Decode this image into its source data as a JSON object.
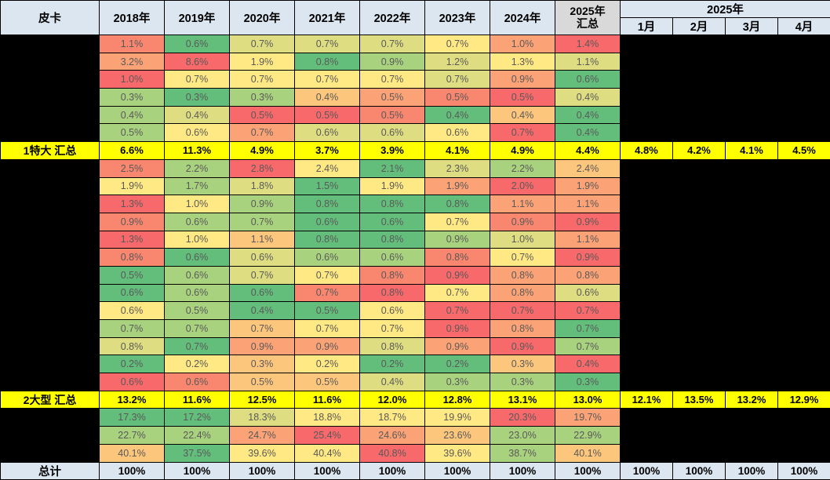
{
  "header": {
    "corner": "皮卡",
    "years": [
      "2018年",
      "2019年",
      "2020年",
      "2021年",
      "2022年",
      "2023年",
      "2024年"
    ],
    "summary_col_line1": "2025年",
    "summary_col_line2": "汇总",
    "months_group_label": "2025年",
    "months": [
      "1月",
      "2月",
      "3月",
      "4月"
    ]
  },
  "colors": {
    "r": "#F8696B",
    "do": "#F9876F",
    "o": "#FBA376",
    "lo": "#FDC67D",
    "y": "#FFE984",
    "yg": "#DFDD82",
    "lg": "#A9D27F",
    "g": "#63BE7B",
    "header_bg": "#DCE6F1",
    "summary_col_bg": "#D9D9D9",
    "highlight_yellow": "#FFFF00",
    "redacted_black": "#000000"
  },
  "rows": [
    {
      "kind": "detail",
      "cells": [
        [
          "1.1%",
          "do"
        ],
        [
          "0.6%",
          "g"
        ],
        [
          "0.7%",
          "yg"
        ],
        [
          "0.7%",
          "yg"
        ],
        [
          "0.7%",
          "yg"
        ],
        [
          "0.7%",
          "y"
        ],
        [
          "1.0%",
          "o"
        ],
        [
          "1.4%",
          "r"
        ]
      ]
    },
    {
      "kind": "detail",
      "cells": [
        [
          "3.2%",
          "o"
        ],
        [
          "8.6%",
          "r"
        ],
        [
          "1.9%",
          "y"
        ],
        [
          "0.8%",
          "g"
        ],
        [
          "0.9%",
          "lg"
        ],
        [
          "1.2%",
          "yg"
        ],
        [
          "1.3%",
          "y"
        ],
        [
          "1.1%",
          "yg"
        ]
      ]
    },
    {
      "kind": "detail",
      "cells": [
        [
          "1.0%",
          "r"
        ],
        [
          "0.7%",
          "y"
        ],
        [
          "0.7%",
          "y"
        ],
        [
          "0.7%",
          "y"
        ],
        [
          "0.7%",
          "y"
        ],
        [
          "0.7%",
          "yg"
        ],
        [
          "0.9%",
          "o"
        ],
        [
          "0.6%",
          "g"
        ]
      ]
    },
    {
      "kind": "detail",
      "cells": [
        [
          "0.3%",
          "lg"
        ],
        [
          "0.3%",
          "g"
        ],
        [
          "0.3%",
          "lg"
        ],
        [
          "0.4%",
          "lo"
        ],
        [
          "0.5%",
          "o"
        ],
        [
          "0.5%",
          "do"
        ],
        [
          "0.5%",
          "r"
        ],
        [
          "0.4%",
          "yg"
        ]
      ]
    },
    {
      "kind": "detail",
      "cells": [
        [
          "0.4%",
          "lg"
        ],
        [
          "0.4%",
          "yg"
        ],
        [
          "0.5%",
          "r"
        ],
        [
          "0.5%",
          "r"
        ],
        [
          "0.5%",
          "do"
        ],
        [
          "0.4%",
          "g"
        ],
        [
          "0.4%",
          "lo"
        ],
        [
          "0.4%",
          "g"
        ]
      ]
    },
    {
      "kind": "detail",
      "cells": [
        [
          "0.5%",
          "lg"
        ],
        [
          "0.6%",
          "y"
        ],
        [
          "0.7%",
          "o"
        ],
        [
          "0.6%",
          "yg"
        ],
        [
          "0.6%",
          "yg"
        ],
        [
          "0.6%",
          "y"
        ],
        [
          "0.7%",
          "r"
        ],
        [
          "0.4%",
          "g"
        ]
      ]
    },
    {
      "kind": "summary",
      "label": "1特大 汇总",
      "values": [
        "6.6%",
        "11.3%",
        "4.9%",
        "3.7%",
        "3.9%",
        "4.1%",
        "4.9%",
        "4.4%"
      ],
      "months": [
        "4.8%",
        "4.2%",
        "4.1%",
        "4.5%"
      ]
    },
    {
      "kind": "detail",
      "cells": [
        [
          "2.5%",
          "do"
        ],
        [
          "2.2%",
          "lg"
        ],
        [
          "2.8%",
          "r"
        ],
        [
          "2.4%",
          "y"
        ],
        [
          "2.1%",
          "g"
        ],
        [
          "2.3%",
          "yg"
        ],
        [
          "2.2%",
          "lg"
        ],
        [
          "2.4%",
          "lo"
        ]
      ]
    },
    {
      "kind": "detail",
      "cells": [
        [
          "1.9%",
          "y"
        ],
        [
          "1.7%",
          "lg"
        ],
        [
          "1.8%",
          "yg"
        ],
        [
          "1.5%",
          "g"
        ],
        [
          "1.9%",
          "y"
        ],
        [
          "1.9%",
          "o"
        ],
        [
          "2.0%",
          "r"
        ],
        [
          "1.9%",
          "o"
        ]
      ]
    },
    {
      "kind": "detail",
      "cells": [
        [
          "1.3%",
          "r"
        ],
        [
          "1.0%",
          "y"
        ],
        [
          "0.9%",
          "lg"
        ],
        [
          "0.8%",
          "g"
        ],
        [
          "0.8%",
          "g"
        ],
        [
          "0.8%",
          "g"
        ],
        [
          "1.1%",
          "o"
        ],
        [
          "1.1%",
          "o"
        ]
      ]
    },
    {
      "kind": "detail",
      "cells": [
        [
          "0.9%",
          "do"
        ],
        [
          "0.6%",
          "lg"
        ],
        [
          "0.7%",
          "lg"
        ],
        [
          "0.6%",
          "g"
        ],
        [
          "0.6%",
          "g"
        ],
        [
          "0.7%",
          "y"
        ],
        [
          "0.9%",
          "do"
        ],
        [
          "0.9%",
          "r"
        ]
      ]
    },
    {
      "kind": "detail",
      "cells": [
        [
          "1.3%",
          "r"
        ],
        [
          "1.0%",
          "y"
        ],
        [
          "1.1%",
          "lo"
        ],
        [
          "0.8%",
          "g"
        ],
        [
          "0.8%",
          "g"
        ],
        [
          "0.9%",
          "lg"
        ],
        [
          "1.0%",
          "yg"
        ],
        [
          "1.1%",
          "o"
        ]
      ]
    },
    {
      "kind": "detail",
      "cells": [
        [
          "0.8%",
          "do"
        ],
        [
          "0.6%",
          "g"
        ],
        [
          "0.6%",
          "yg"
        ],
        [
          "0.6%",
          "lg"
        ],
        [
          "0.6%",
          "lg"
        ],
        [
          "0.8%",
          "do"
        ],
        [
          "0.7%",
          "y"
        ],
        [
          "0.9%",
          "r"
        ]
      ]
    },
    {
      "kind": "detail",
      "cells": [
        [
          "0.5%",
          "g"
        ],
        [
          "0.6%",
          "lg"
        ],
        [
          "0.7%",
          "yg"
        ],
        [
          "0.7%",
          "y"
        ],
        [
          "0.8%",
          "do"
        ],
        [
          "0.9%",
          "r"
        ],
        [
          "0.8%",
          "o"
        ],
        [
          "0.8%",
          "o"
        ]
      ]
    },
    {
      "kind": "detail",
      "cells": [
        [
          "0.6%",
          "g"
        ],
        [
          "0.6%",
          "lg"
        ],
        [
          "0.6%",
          "g"
        ],
        [
          "0.7%",
          "do"
        ],
        [
          "0.8%",
          "r"
        ],
        [
          "0.7%",
          "y"
        ],
        [
          "0.8%",
          "o"
        ],
        [
          "0.6%",
          "yg"
        ]
      ]
    },
    {
      "kind": "detail",
      "cells": [
        [
          "0.6%",
          "y"
        ],
        [
          "0.5%",
          "lg"
        ],
        [
          "0.4%",
          "g"
        ],
        [
          "0.5%",
          "g"
        ],
        [
          "0.6%",
          "y"
        ],
        [
          "0.7%",
          "r"
        ],
        [
          "0.7%",
          "r"
        ],
        [
          "0.7%",
          "r"
        ]
      ]
    },
    {
      "kind": "detail",
      "cells": [
        [
          "0.7%",
          "lg"
        ],
        [
          "0.7%",
          "lg"
        ],
        [
          "0.7%",
          "lo"
        ],
        [
          "0.7%",
          "y"
        ],
        [
          "0.7%",
          "y"
        ],
        [
          "0.9%",
          "r"
        ],
        [
          "0.8%",
          "o"
        ],
        [
          "0.7%",
          "g"
        ]
      ]
    },
    {
      "kind": "detail",
      "cells": [
        [
          "0.8%",
          "yg"
        ],
        [
          "0.7%",
          "g"
        ],
        [
          "0.9%",
          "o"
        ],
        [
          "0.9%",
          "o"
        ],
        [
          "0.8%",
          "yg"
        ],
        [
          "0.9%",
          "o"
        ],
        [
          "0.9%",
          "r"
        ],
        [
          "0.7%",
          "lg"
        ]
      ]
    },
    {
      "kind": "detail",
      "cells": [
        [
          "0.2%",
          "g"
        ],
        [
          "0.2%",
          "y"
        ],
        [
          "0.3%",
          "lo"
        ],
        [
          "0.2%",
          "y"
        ],
        [
          "0.2%",
          "g"
        ],
        [
          "0.2%",
          "g"
        ],
        [
          "0.3%",
          "lo"
        ],
        [
          "0.4%",
          "r"
        ]
      ]
    },
    {
      "kind": "detail",
      "cells": [
        [
          "0.6%",
          "r"
        ],
        [
          "0.6%",
          "do"
        ],
        [
          "0.5%",
          "lo"
        ],
        [
          "0.5%",
          "lo"
        ],
        [
          "0.4%",
          "yg"
        ],
        [
          "0.3%",
          "lg"
        ],
        [
          "0.3%",
          "lg"
        ],
        [
          "0.3%",
          "g"
        ]
      ]
    },
    {
      "kind": "summary",
      "label": "2大型 汇总",
      "values": [
        "13.2%",
        "11.6%",
        "12.5%",
        "11.6%",
        "12.0%",
        "12.8%",
        "13.1%",
        "13.0%"
      ],
      "months": [
        "12.1%",
        "13.5%",
        "13.2%",
        "12.9%"
      ]
    },
    {
      "kind": "detail",
      "cells": [
        [
          "17.3%",
          "g"
        ],
        [
          "17.2%",
          "g"
        ],
        [
          "18.3%",
          "yg"
        ],
        [
          "18.8%",
          "y"
        ],
        [
          "18.7%",
          "y"
        ],
        [
          "19.9%",
          "y"
        ],
        [
          "20.3%",
          "r"
        ],
        [
          "19.7%",
          "o"
        ]
      ]
    },
    {
      "kind": "detail",
      "cells": [
        [
          "22.7%",
          "lg"
        ],
        [
          "22.4%",
          "lg"
        ],
        [
          "24.7%",
          "o"
        ],
        [
          "25.4%",
          "r"
        ],
        [
          "24.6%",
          "o"
        ],
        [
          "23.6%",
          "lo"
        ],
        [
          "23.0%",
          "lg"
        ],
        [
          "22.9%",
          "lg"
        ]
      ]
    },
    {
      "kind": "detail",
      "cells": [
        [
          "40.1%",
          "lo"
        ],
        [
          "37.5%",
          "g"
        ],
        [
          "39.6%",
          "y"
        ],
        [
          "40.4%",
          "y"
        ],
        [
          "40.8%",
          "r"
        ],
        [
          "39.6%",
          "y"
        ],
        [
          "38.7%",
          "lg"
        ],
        [
          "40.1%",
          "lo"
        ]
      ]
    },
    {
      "kind": "total",
      "label": "总计",
      "values": [
        "100%",
        "100%",
        "100%",
        "100%",
        "100%",
        "100%",
        "100%",
        "100%"
      ],
      "months": [
        "100%",
        "100%",
        "100%",
        "100%"
      ]
    }
  ],
  "chart_data": {
    "type": "heatmap",
    "title": "皮卡",
    "columns": [
      "2018年",
      "2019年",
      "2020年",
      "2021年",
      "2022年",
      "2023年",
      "2024年",
      "2025年汇总",
      "2025年1月",
      "2025年2月",
      "2025年3月",
      "2025年4月"
    ],
    "color_scale_note": "3-color scale: green #63BE7B (low) → yellow #FFE984 → red #F8696B (high); detail row labels and monthly detail cells are blacked out",
    "groups": [
      {
        "summary_label": "1特大 汇总",
        "detail_rows_pct": [
          [
            1.1,
            0.6,
            0.7,
            0.7,
            0.7,
            0.7,
            1.0,
            1.4
          ],
          [
            3.2,
            8.6,
            1.9,
            0.8,
            0.9,
            1.2,
            1.3,
            1.1
          ],
          [
            1.0,
            0.7,
            0.7,
            0.7,
            0.7,
            0.7,
            0.9,
            0.6
          ],
          [
            0.3,
            0.3,
            0.3,
            0.4,
            0.5,
            0.5,
            0.5,
            0.4
          ],
          [
            0.4,
            0.4,
            0.5,
            0.5,
            0.5,
            0.4,
            0.4,
            0.4
          ],
          [
            0.5,
            0.6,
            0.7,
            0.6,
            0.6,
            0.6,
            0.7,
            0.4
          ]
        ],
        "summary_pct": [
          6.6,
          11.3,
          4.9,
          3.7,
          3.9,
          4.1,
          4.9,
          4.4,
          4.8,
          4.2,
          4.1,
          4.5
        ]
      },
      {
        "summary_label": "2大型 汇总",
        "detail_rows_pct": [
          [
            2.5,
            2.2,
            2.8,
            2.4,
            2.1,
            2.3,
            2.2,
            2.4
          ],
          [
            1.9,
            1.7,
            1.8,
            1.5,
            1.9,
            1.9,
            2.0,
            1.9
          ],
          [
            1.3,
            1.0,
            0.9,
            0.8,
            0.8,
            0.8,
            1.1,
            1.1
          ],
          [
            0.9,
            0.6,
            0.7,
            0.6,
            0.6,
            0.7,
            0.9,
            0.9
          ],
          [
            1.3,
            1.0,
            1.1,
            0.8,
            0.8,
            0.9,
            1.0,
            1.1
          ],
          [
            0.8,
            0.6,
            0.6,
            0.6,
            0.6,
            0.8,
            0.7,
            0.9
          ],
          [
            0.5,
            0.6,
            0.7,
            0.7,
            0.8,
            0.9,
            0.8,
            0.8
          ],
          [
            0.6,
            0.6,
            0.6,
            0.7,
            0.8,
            0.7,
            0.8,
            0.6
          ],
          [
            0.6,
            0.5,
            0.4,
            0.5,
            0.6,
            0.7,
            0.7,
            0.7
          ],
          [
            0.7,
            0.7,
            0.7,
            0.7,
            0.7,
            0.9,
            0.8,
            0.7
          ],
          [
            0.8,
            0.7,
            0.9,
            0.9,
            0.8,
            0.9,
            0.9,
            0.7
          ],
          [
            0.2,
            0.2,
            0.3,
            0.2,
            0.2,
            0.2,
            0.3,
            0.4
          ],
          [
            0.6,
            0.6,
            0.5,
            0.5,
            0.4,
            0.3,
            0.3,
            0.3
          ]
        ],
        "summary_pct": [
          13.2,
          11.6,
          12.5,
          11.6,
          12.0,
          12.8,
          13.1,
          13.0,
          12.1,
          13.5,
          13.2,
          12.9
        ]
      },
      {
        "summary_label": null,
        "detail_rows_pct": [
          [
            17.3,
            17.2,
            18.3,
            18.8,
            18.7,
            19.9,
            20.3,
            19.7
          ],
          [
            22.7,
            22.4,
            24.7,
            25.4,
            24.6,
            23.6,
            23.0,
            22.9
          ],
          [
            40.1,
            37.5,
            39.6,
            40.4,
            40.8,
            39.6,
            38.7,
            40.1
          ]
        ]
      }
    ],
    "total_label": "总计",
    "total_pct": [
      100,
      100,
      100,
      100,
      100,
      100,
      100,
      100,
      100,
      100,
      100,
      100
    ]
  }
}
